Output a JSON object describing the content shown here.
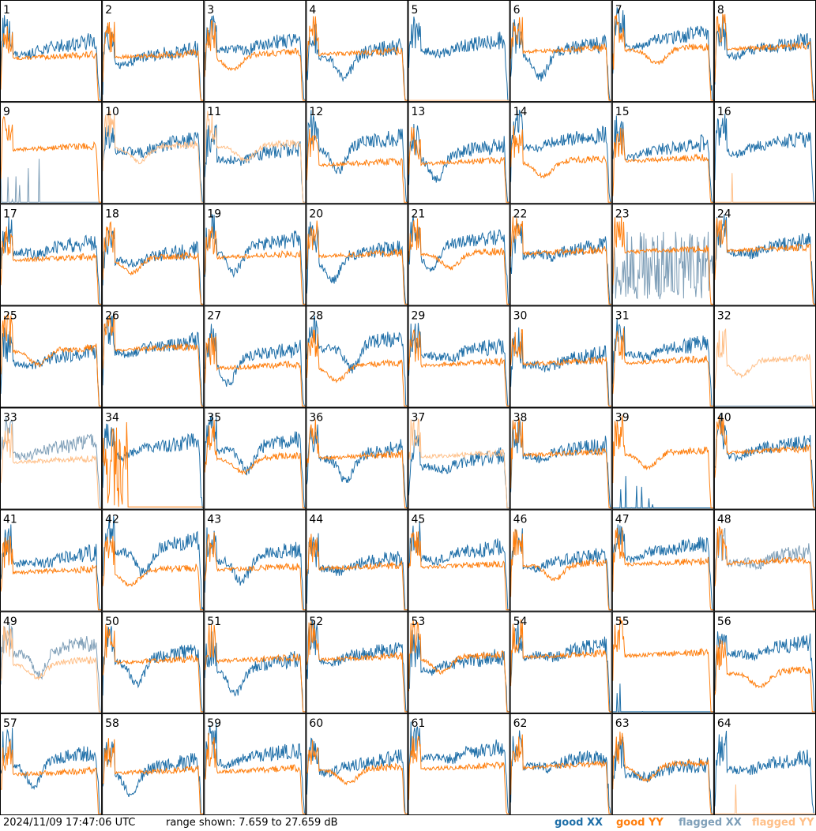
{
  "chart_data": {
    "type": "line",
    "grid_rows": 8,
    "grid_cols": 8,
    "panel_labels": [
      "1",
      "2",
      "3",
      "4",
      "5",
      "6",
      "7",
      "8",
      "9",
      "10",
      "11",
      "12",
      "13",
      "14",
      "15",
      "16",
      "17",
      "18",
      "19",
      "20",
      "21",
      "22",
      "23",
      "24",
      "25",
      "26",
      "27",
      "28",
      "29",
      "30",
      "31",
      "32",
      "33",
      "34",
      "35",
      "36",
      "37",
      "38",
      "39",
      "40",
      "41",
      "42",
      "43",
      "44",
      "45",
      "46",
      "47",
      "48",
      "49",
      "50",
      "51",
      "52",
      "53",
      "54",
      "55",
      "56",
      "57",
      "58",
      "59",
      "60",
      "61",
      "62",
      "63",
      "64"
    ],
    "y_range_db": [
      7.659,
      27.659
    ],
    "series": [
      {
        "name": "good XX",
        "color": "#1f6fa8"
      },
      {
        "name": "good YY",
        "color": "#ff7f0e"
      },
      {
        "name": "flagged XX",
        "color": "#7f9fb8"
      },
      {
        "name": "flagged YY",
        "color": "#ffbf87"
      }
    ],
    "flags": {
      "5": {
        "YY": "flat"
      },
      "9": {
        "XX": "flagged_spikes"
      },
      "10": {
        "YY": "flagged"
      },
      "11": {
        "YY": "flagged"
      },
      "16": {
        "YY": "flat_spike"
      },
      "23": {
        "XX": "flagged_noisy"
      },
      "32": {
        "YY": "flagged",
        "XX": "flat"
      },
      "33": {
        "XX": "flagged",
        "YY": "flagged"
      },
      "34": {
        "YY": "spiky"
      },
      "37": {
        "YY": "flagged"
      },
      "39": {
        "XX": "spikes"
      },
      "48": {
        "XX": "flagged"
      },
      "49": {
        "XX": "flagged",
        "YY": "flagged"
      },
      "55": {
        "XX": "spikes"
      },
      "64": {
        "YY": "flat_spike"
      }
    }
  },
  "footer": {
    "timestamp": "2024/11/09 17:47:06 UTC",
    "range_text": "range shown: 7.659 to 27.659 dB",
    "legend": {
      "good_xx": "good XX",
      "good_yy": "good YY",
      "flagged_xx": "flagged XX",
      "flagged_yy": "flagged YY"
    },
    "colors": {
      "good_xx": "#1f6fa8",
      "good_yy": "#ff7f0e",
      "flagged_xx": "#7f9fb8",
      "flagged_yy": "#ffbf87"
    }
  }
}
